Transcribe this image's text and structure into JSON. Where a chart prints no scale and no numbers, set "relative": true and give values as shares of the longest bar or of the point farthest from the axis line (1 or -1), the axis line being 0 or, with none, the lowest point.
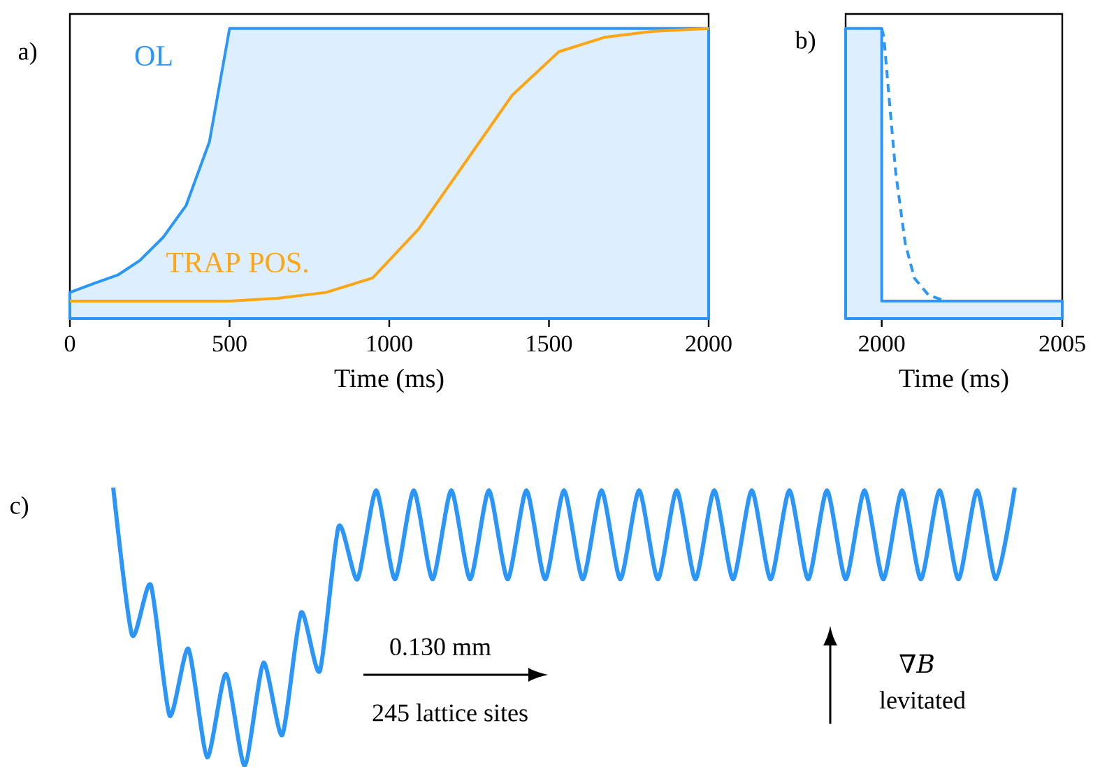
{
  "chart_data": [
    {
      "type": "line",
      "title": "a)",
      "xlabel": "Time (ms)",
      "relative": true,
      "xlim": [
        0,
        2000
      ],
      "xticks": [
        0,
        500,
        1000,
        1500,
        2000
      ],
      "series": [
        {
          "name": "OL",
          "type": "area",
          "color": "#2b96f9",
          "x": [
            0,
            73,
            150,
            219,
            292,
            364,
            437,
            500,
            2000
          ],
          "values": [
            0.09,
            0.12,
            0.15,
            0.2,
            0.28,
            0.39,
            0.61,
            1,
            1
          ]
        },
        {
          "name": "TRAP POS.",
          "type": "line",
          "color": "#ffa514",
          "x": [
            0,
            500,
            650,
            802,
            948,
            1093,
            1239,
            1385,
            1531,
            1676,
            1822,
            2000
          ],
          "values": [
            0.06,
            0.06,
            0.07,
            0.09,
            0.14,
            0.31,
            0.54,
            0.77,
            0.92,
            0.97,
            0.99,
            1
          ]
        }
      ]
    },
    {
      "type": "line",
      "title": "b)",
      "xlabel": "Time (ms)",
      "relative": true,
      "xlim": [
        1999,
        2005
      ],
      "xticks": [
        2000,
        2005
      ],
      "series": [
        {
          "type": "area",
          "color": "#2b96f9",
          "x": [
            1999,
            2000,
            2000,
            2005
          ],
          "values": [
            1,
            1,
            0.06,
            0.06
          ]
        },
        {
          "type": "line",
          "color": "#2b96f9",
          "line_style": "dashed",
          "x": [
            2000,
            2000.06,
            2000.19,
            2000.39,
            2000.65,
            2000.9,
            2001.3,
            2001.8,
            2005
          ],
          "values": [
            1,
            0.97,
            0.78,
            0.5,
            0.26,
            0.14,
            0.08,
            0.06,
            0.06
          ]
        }
      ]
    },
    {
      "type": "line",
      "title": "c)",
      "relative": true,
      "categories": [
        null,
        null,
        null,
        null,
        null,
        null,
        null,
        null,
        null,
        null,
        null,
        null,
        null,
        null,
        null,
        null,
        null,
        null,
        null,
        null,
        null,
        null,
        null,
        null,
        null,
        null,
        null,
        null,
        null,
        null,
        null,
        null,
        null,
        null,
        null,
        null,
        null,
        null,
        null,
        null,
        null,
        null,
        null,
        null,
        null,
        null,
        null,
        null,
        null
      ],
      "series": [
        {
          "color": "#2b96f9",
          "values": [
            1,
            0.47,
            0.65,
            0.18,
            0.42,
            0.03,
            0.33,
            0,
            0.37,
            0.11,
            0.55,
            0.34,
            0.86,
            0.67,
            0.99,
            0.67,
            0.99,
            0.67,
            0.99,
            0.67,
            0.99,
            0.67,
            0.99,
            0.67,
            0.99,
            0.67,
            0.99,
            0.67,
            0.99,
            0.67,
            0.99,
            0.67,
            0.99,
            0.67,
            0.99,
            0.67,
            0.99,
            0.67,
            0.99,
            0.67,
            0.99,
            0.67,
            0.99,
            0.67,
            0.99,
            0.67,
            0.99,
            0.67,
            1
          ]
        }
      ],
      "annotations": [
        "0.130 mm",
        "245 lattice sites",
        "∇*B*",
        "levitated"
      ]
    }
  ]
}
